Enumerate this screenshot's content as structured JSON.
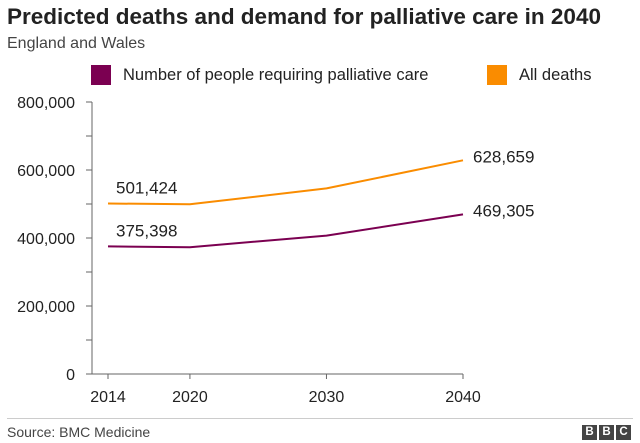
{
  "chart_data": {
    "type": "line",
    "title": "Predicted deaths and demand for palliative care in 2040",
    "subtitle": "England and Wales",
    "x": [
      2014,
      2020,
      2030,
      2040
    ],
    "x_tick_labels": [
      "2014",
      "2020",
      "2030",
      "2040"
    ],
    "y_tick_labels": [
      "0",
      "200,000",
      "400,000",
      "600,000",
      "800,000"
    ],
    "y_ticks": [
      0,
      200000,
      400000,
      600000,
      800000
    ],
    "ylim": [
      0,
      800000
    ],
    "xlim": [
      2014,
      2040
    ],
    "grid": false,
    "legend_position": "top",
    "series": [
      {
        "name": "Number of people requiring palliative care",
        "color": "#7b0051",
        "values": [
          375398,
          373000,
          407000,
          469305
        ],
        "labels": [
          {
            "index": 0,
            "text": "375,398"
          },
          {
            "index": 3,
            "text": "469,305"
          }
        ]
      },
      {
        "name": "All deaths",
        "color": "#fa8c00",
        "values": [
          501424,
          499000,
          546000,
          628659
        ],
        "labels": [
          {
            "index": 0,
            "text": "501,424"
          },
          {
            "index": 3,
            "text": "628,659"
          }
        ]
      }
    ],
    "source": "Source: BMC Medicine"
  },
  "branding": {
    "logo_letters": [
      "B",
      "B",
      "C"
    ],
    "logo_color": "#444444"
  }
}
